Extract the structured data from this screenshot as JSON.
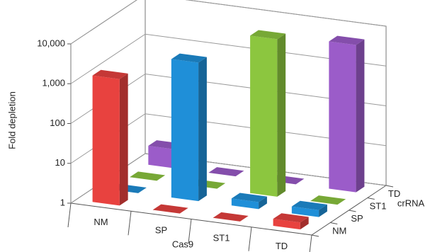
{
  "chart_data": {
    "type": "bar3d",
    "x_label": "Cas9",
    "depth_label": "crRNA",
    "y_label": "Fold depletion",
    "categories": [
      "NM",
      "SP",
      "ST1",
      "TD"
    ],
    "series": [
      {
        "name": "NM",
        "color": "#e8423f",
        "values": [
          1500,
          1,
          1,
          1.5
        ]
      },
      {
        "name": "SP",
        "color": "#1f8fd8",
        "values": [
          1,
          3000,
          1.5,
          1.5
        ]
      },
      {
        "name": "ST1",
        "color": "#8cc63f",
        "values": [
          1,
          1,
          9000,
          1
        ]
      },
      {
        "name": "TD",
        "color": "#9b5cc9",
        "values": [
          3,
          1,
          1,
          5000
        ]
      }
    ],
    "log_scale": true,
    "ylim": [
      1,
      10000
    ],
    "yticks": [
      1,
      10,
      100,
      {
        "value": 1000,
        "label": "1,000"
      },
      {
        "value": 10000,
        "label": "10,000"
      }
    ],
    "grid": true
  }
}
